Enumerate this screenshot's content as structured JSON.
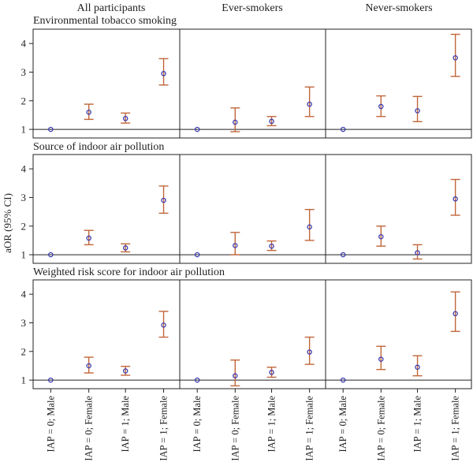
{
  "chart_data": {
    "type": "scatter",
    "ylabel": "aOR (95% CI)",
    "ylim": [
      0.7,
      4.5
    ],
    "yticks": [
      1,
      2,
      3,
      4
    ],
    "reference_line": 1,
    "columns": [
      "All participants",
      "Ever-smokers",
      "Never-smokers"
    ],
    "categories": [
      "IAP = 0; Male",
      "IAP = 0; Female",
      "IAP = 1; Male",
      "IAP = 1; Female"
    ],
    "colors": {
      "point": "#3b3bb0",
      "errorbar": "#c0663a",
      "axis": "#222222"
    },
    "rows": [
      {
        "title": "Environmental tobacco smoking",
        "panels": [
          {
            "column": "All participants",
            "values": [
              1.0,
              1.6,
              1.38,
              2.95
            ],
            "ci_low": [
              1.0,
              1.35,
              1.22,
              2.55
            ],
            "ci_high": [
              1.0,
              1.88,
              1.57,
              3.47
            ]
          },
          {
            "column": "Ever-smokers",
            "values": [
              1.0,
              1.25,
              1.28,
              1.88
            ],
            "ci_low": [
              1.0,
              0.92,
              1.13,
              1.45
            ],
            "ci_high": [
              1.0,
              1.75,
              1.45,
              2.48
            ]
          },
          {
            "column": "Never-smokers",
            "values": [
              1.0,
              1.8,
              1.65,
              3.5
            ],
            "ci_low": [
              1.0,
              1.45,
              1.27,
              2.85
            ],
            "ci_high": [
              1.0,
              2.17,
              2.15,
              4.32
            ]
          }
        ]
      },
      {
        "title": "Source of indoor air pollution",
        "panels": [
          {
            "column": "All participants",
            "values": [
              1.0,
              1.58,
              1.24,
              2.9
            ],
            "ci_low": [
              1.0,
              1.35,
              1.1,
              2.45
            ],
            "ci_high": [
              1.0,
              1.85,
              1.38,
              3.4
            ]
          },
          {
            "column": "Ever-smokers",
            "values": [
              1.0,
              1.32,
              1.3,
              1.97
            ],
            "ci_low": [
              1.0,
              1.0,
              1.15,
              1.5
            ],
            "ci_high": [
              1.0,
              1.78,
              1.48,
              2.58
            ]
          },
          {
            "column": "Never-smokers",
            "values": [
              1.0,
              1.63,
              1.07,
              2.95
            ],
            "ci_low": [
              1.0,
              1.3,
              0.85,
              2.38
            ],
            "ci_high": [
              1.0,
              2.0,
              1.35,
              3.63
            ]
          }
        ]
      },
      {
        "title": "Weighted risk score for indoor air pollution",
        "panels": [
          {
            "column": "All participants",
            "values": [
              1.0,
              1.5,
              1.32,
              2.92
            ],
            "ci_low": [
              1.0,
              1.25,
              1.17,
              2.5
            ],
            "ci_high": [
              1.0,
              1.8,
              1.48,
              3.4
            ]
          },
          {
            "column": "Ever-smokers",
            "values": [
              1.0,
              1.15,
              1.27,
              1.98
            ],
            "ci_low": [
              1.0,
              0.8,
              1.1,
              1.55
            ],
            "ci_high": [
              1.0,
              1.7,
              1.45,
              2.5
            ]
          },
          {
            "column": "Never-smokers",
            "values": [
              1.0,
              1.73,
              1.45,
              3.32
            ],
            "ci_low": [
              1.0,
              1.37,
              1.15,
              2.7
            ],
            "ci_high": [
              1.0,
              2.18,
              1.85,
              4.08
            ]
          }
        ]
      }
    ]
  }
}
